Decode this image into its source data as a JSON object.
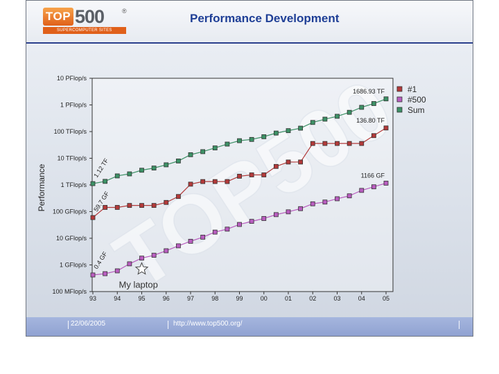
{
  "header": {
    "logo_badge": "TOP",
    "logo_number": "500",
    "logo_reg": "®",
    "logo_tagline": "SUPERCOMPUTER SITES",
    "title": "Performance Development"
  },
  "footer": {
    "date": "22/06/2005",
    "url": "http://www.top500.org/"
  },
  "colors": {
    "num1": "#b33a3a",
    "num500": "#b85dbf",
    "sum": "#3d9166"
  },
  "chart_data": {
    "type": "line",
    "title": "Performance Development",
    "ylabel": "Performance",
    "xlabel": "",
    "yscale": "log",
    "ylim_gflops": [
      0.1,
      10000000
    ],
    "y_ticks": [
      {
        "value": 10000000,
        "label": "10 PFlop/s"
      },
      {
        "value": 1000000,
        "label": "1 PFlop/s"
      },
      {
        "value": 100000,
        "label": "100 TFlop/s"
      },
      {
        "value": 10000,
        "label": "10 TFlop/s"
      },
      {
        "value": 1000,
        "label": "1 TFlop/s"
      },
      {
        "value": 100,
        "label": "100 GFlop/s"
      },
      {
        "value": 10,
        "label": "10 GFlop/s"
      },
      {
        "value": 1,
        "label": "1 GFlop/s"
      },
      {
        "value": 0.1,
        "label": "100 MFlop/s"
      }
    ],
    "xlim": [
      1993.0,
      2005.5
    ],
    "x_ticks": [
      {
        "value": 1993.0,
        "label": "93"
      },
      {
        "value": 1994.0,
        "label": "94"
      },
      {
        "value": 1995.0,
        "label": "95"
      },
      {
        "value": 1996.0,
        "label": "96"
      },
      {
        "value": 1997.0,
        "label": "97"
      },
      {
        "value": 1998.0,
        "label": "98"
      },
      {
        "value": 1999.0,
        "label": "99"
      },
      {
        "value": 2000.0,
        "label": "00"
      },
      {
        "value": 2001.0,
        "label": "01"
      },
      {
        "value": 2002.0,
        "label": "02"
      },
      {
        "value": 2003.0,
        "label": "03"
      },
      {
        "value": 2004.0,
        "label": "04"
      },
      {
        "value": 2005.0,
        "label": "05"
      }
    ],
    "series": [
      {
        "name": "#1",
        "key": "num1",
        "x": [
          1993.0,
          1993.5,
          1994.0,
          1994.5,
          1995.0,
          1995.5,
          1996.0,
          1996.5,
          1997.0,
          1997.5,
          1998.0,
          1998.5,
          1999.0,
          1999.5,
          2000.0,
          2000.5,
          2001.0,
          2001.5,
          2002.0,
          2002.5,
          2003.0,
          2003.5,
          2004.0,
          2004.5,
          2005.0
        ],
        "values": [
          59.7,
          143.4,
          143.4,
          170,
          170,
          170,
          220.4,
          368.2,
          1068,
          1338,
          1338,
          1338,
          2121,
          2379,
          2379,
          4938,
          7226,
          7226,
          35860,
          35860,
          35860,
          35860,
          35860,
          70720,
          136800
        ]
      },
      {
        "name": "#500",
        "key": "num500",
        "x": [
          1993.0,
          1993.5,
          1994.0,
          1994.5,
          1995.0,
          1995.5,
          1996.0,
          1996.5,
          1997.0,
          1997.5,
          1998.0,
          1998.5,
          1999.0,
          1999.5,
          2000.0,
          2000.5,
          2001.0,
          2001.5,
          2002.0,
          2002.5,
          2003.0,
          2003.5,
          2004.0,
          2004.5,
          2005.0
        ],
        "values": [
          0.42,
          0.47,
          0.6,
          1.1,
          1.8,
          2.3,
          3.4,
          5.2,
          7.7,
          11,
          17,
          22,
          33,
          43,
          55,
          77,
          98,
          129,
          196,
          228,
          303,
          390,
          624,
          850,
          1166
        ]
      },
      {
        "name": "Sum",
        "key": "sum",
        "x": [
          1993.0,
          1993.5,
          1994.0,
          1994.5,
          1995.0,
          1995.5,
          1996.0,
          1996.5,
          1997.0,
          1997.5,
          1998.0,
          1998.5,
          1999.0,
          1999.5,
          2000.0,
          2000.5,
          2001.0,
          2001.5,
          2002.0,
          2002.5,
          2003.0,
          2003.5,
          2004.0,
          2004.5,
          2005.0
        ],
        "values": [
          1120,
          1360,
          2180,
          2600,
          3560,
          4300,
          5680,
          7900,
          13600,
          17700,
          24400,
          34000,
          45600,
          50800,
          64300,
          88100,
          108500,
          134500,
          220400,
          293000,
          375000,
          528000,
          813000,
          1127000,
          1686930
        ]
      }
    ],
    "legend": [
      {
        "name": "#1",
        "key": "num1"
      },
      {
        "name": "#500",
        "key": "num500"
      },
      {
        "name": "Sum",
        "key": "sum"
      }
    ],
    "legend_position": "top-right",
    "annotations": [
      {
        "text": "1686.93 TF",
        "series": "sum",
        "at": "end",
        "place": "above"
      },
      {
        "text": "136.80 TF",
        "series": "num1",
        "at": "end",
        "place": "above"
      },
      {
        "text": "1166 GF",
        "series": "num500",
        "at": "end",
        "place": "above"
      },
      {
        "text": "1.12 TF",
        "series": "sum",
        "at": "start",
        "place": "rotated"
      },
      {
        "text": "59.7 GF",
        "series": "num1",
        "at": "start",
        "place": "rotated"
      },
      {
        "text": "0.4 GF",
        "series": "num500",
        "at": "start",
        "place": "rotated"
      }
    ],
    "marker_note": {
      "text": "My laptop",
      "x": 1995.0,
      "value": 0.7
    },
    "watermark": "TOP500"
  }
}
